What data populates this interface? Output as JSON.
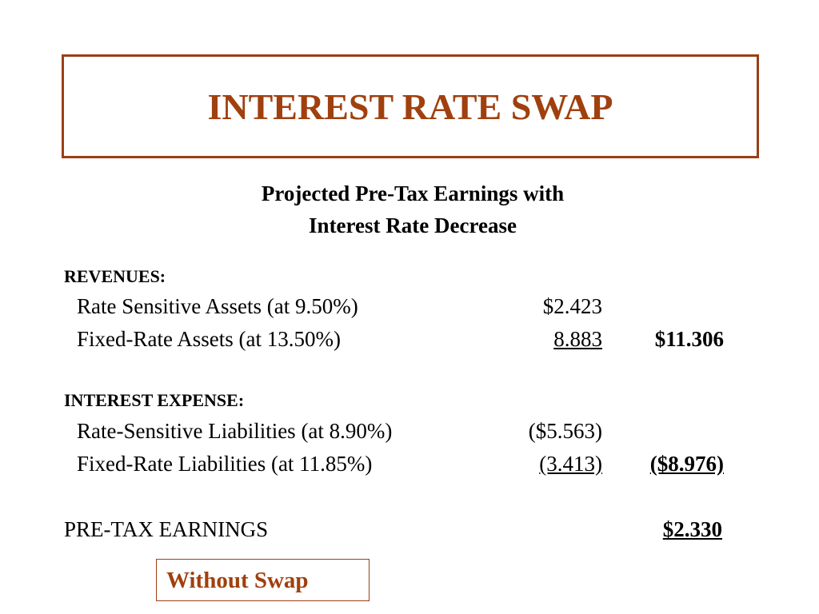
{
  "title": "INTEREST RATE SWAP",
  "subtitle": [
    "Projected Pre-Tax Earnings with",
    "Interest Rate Decrease"
  ],
  "sections": [
    {
      "heading": "REVENUES:",
      "rows": [
        {
          "label": "Rate Sensitive Assets (at 9.50%)",
          "amount": "$2.423"
        },
        {
          "label": "Fixed-Rate Assets (at 13.50%)",
          "amount": "8.883",
          "total": "$11.306"
        }
      ]
    },
    {
      "heading": "INTEREST EXPENSE:",
      "rows": [
        {
          "label": "Rate-Sensitive Liabilities  (at 8.90%)",
          "amount": "($5.563)"
        },
        {
          "label": "Fixed-Rate Liabilities  (at 11.85%)",
          "amount": "(3.413)",
          "total": "($8.976)"
        }
      ]
    }
  ],
  "result": {
    "label": "PRE-TAX EARNINGS",
    "amount": "$2.330"
  },
  "note": "Without Swap"
}
